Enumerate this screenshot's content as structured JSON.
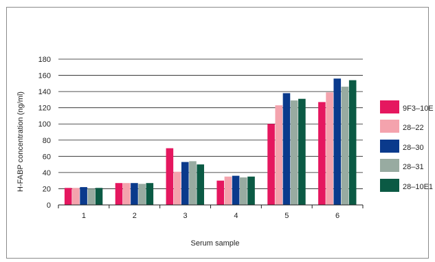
{
  "chart_data": {
    "type": "bar",
    "title": "",
    "xlabel": "Serum sample",
    "ylabel": "H-FABP concentration (ng/ml)",
    "ylim": [
      0,
      180
    ],
    "yticks": [
      0,
      20,
      40,
      60,
      80,
      100,
      120,
      140,
      160,
      180
    ],
    "grid": true,
    "legend_position": "right",
    "categories": [
      "1",
      "2",
      "3",
      "4",
      "5",
      "6"
    ],
    "series": [
      {
        "name": "9F3–10E",
        "color": "#e5175f",
        "values": [
          21,
          27,
          70,
          30,
          100,
          127
        ]
      },
      {
        "name": "28–22",
        "color": "#f4a3ad",
        "values": [
          21,
          27,
          41,
          35,
          123,
          139
        ]
      },
      {
        "name": "28–30",
        "color": "#0a3a8c",
        "values": [
          22,
          27,
          53,
          36,
          138,
          156
        ]
      },
      {
        "name": "28–31",
        "color": "#98aba1",
        "values": [
          20,
          26,
          54,
          34,
          129,
          146
        ]
      },
      {
        "name": "28–10E1",
        "color": "#0b5a44",
        "values": [
          21,
          27,
          50,
          35,
          131,
          154
        ]
      }
    ]
  }
}
